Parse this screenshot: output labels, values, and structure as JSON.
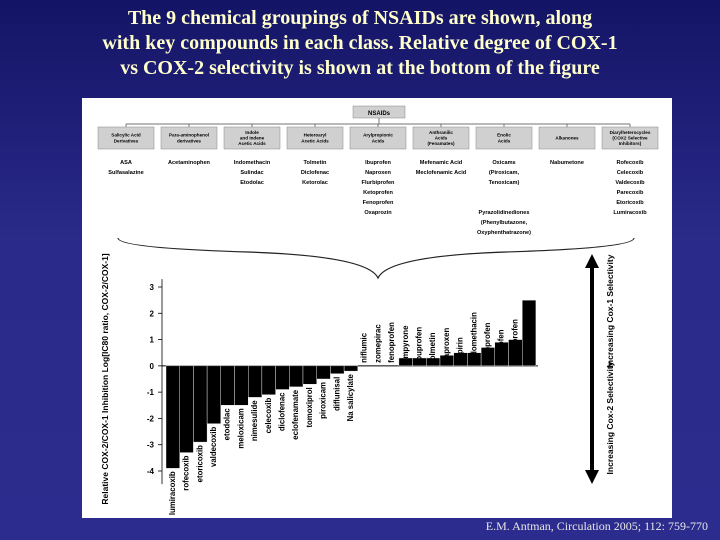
{
  "slide": {
    "title_lines": [
      "The 9 chemical groupings of NSAIDs are shown, along",
      "with key compounds in each class. Relative degree of COX-1",
      "vs COX-2 selectivity is shown at the bottom of the figure"
    ],
    "citation": "E.M. Antman, Circulation 2005; 112: 759-770"
  },
  "colors": {
    "box": "#d0d0d0",
    "bar": "#000000",
    "background": "#1c1c6e",
    "title": "#ffffcc"
  },
  "tree": {
    "root": "NSAIDs",
    "classes": [
      {
        "name": [
          "Salicylic Acid",
          "Derivatives"
        ],
        "compounds": [
          "ASA",
          "Sulfasalazine"
        ]
      },
      {
        "name": [
          "Para-aminophenol",
          "derivatives"
        ],
        "compounds": [
          "Acetaminophen"
        ]
      },
      {
        "name": [
          "Indole",
          "and Indene",
          "Acetic Acids"
        ],
        "compounds": [
          "Indomethacin",
          "Sulindac",
          "Etodolac"
        ]
      },
      {
        "name": [
          "Heteroaryl",
          "Acetic Acids"
        ],
        "compounds": [
          "Tolmetin",
          "Diclofenac",
          "Ketorolac"
        ]
      },
      {
        "name": [
          "Arylpropionic",
          "Acids"
        ],
        "compounds": [
          "Ibuprofen",
          "Naproxen",
          "Flurbiprofen",
          "Ketoprofen",
          "Fenoprofen",
          "Oxaprozin"
        ]
      },
      {
        "name": [
          "Anthranilic",
          "Acids",
          "(Fenamates)"
        ],
        "compounds": [
          "Mefenamic Acid",
          "Meclofenamic Acid"
        ]
      },
      {
        "name": [
          "Enolic",
          "Acids"
        ],
        "compounds": [
          "Oxicams",
          "(Piroxicam,",
          "Tenoxicam)",
          "",
          "",
          "Pyrazolidinediones",
          "(Phenylbutazone,",
          "Oxyphenthatrazone)"
        ]
      },
      {
        "name": [
          "Alkanones"
        ],
        "compounds": [
          "Nabumetone"
        ]
      },
      {
        "name": [
          "Diarylheterocycles",
          "(COX2 Selective",
          "Inhibitors)"
        ],
        "compounds": [
          "Rofecoxib",
          "Celecoxib",
          "Valdecoxib",
          "Parecoxib",
          "Etoricoxib",
          "Lumiracoxib"
        ]
      }
    ]
  },
  "chart_data": {
    "type": "bar",
    "ylabel": "Relative COX-2/COX-1 Inhibition Log[IC80 ratio, COX-2/COX-1]",
    "ylim": [
      -4.5,
      3.5
    ],
    "yticks": [
      "3",
      "2",
      "1",
      "0",
      "-1",
      "-2",
      "-3",
      "-4"
    ],
    "categories": [
      "lumiracoxib",
      "rofecoxib",
      "etoricoxib",
      "valdecoxib",
      "etodolac",
      "meloxicam",
      "nimesulide",
      "celecoxib",
      "diclofenac",
      "eclofenamate",
      "tomoxiprol",
      "piroxicam",
      "diflunisal",
      "Na salicylate",
      "niflumic",
      "zomepirac",
      "fenoprofen",
      "ampyrone",
      "ibuprofen",
      "tolmetin",
      "naproxen",
      "aspirin",
      "indomethacin",
      "ketoprofen",
      "suprofen",
      "flurbiprofen",
      "ketorolac"
    ],
    "values": [
      -3.9,
      -3.3,
      -2.9,
      -2.2,
      -1.5,
      -1.5,
      -1.2,
      -1.1,
      -0.9,
      -0.8,
      -0.7,
      -0.5,
      -0.3,
      -0.2,
      0,
      0,
      0,
      0.3,
      0.3,
      0.3,
      0.4,
      0.5,
      0.5,
      0.7,
      0.9,
      1.0,
      2.5
    ],
    "arrow_labels": {
      "up": "Increasing Cox-1 Selectivity",
      "down": "Increasing Cox-2 Selectivity"
    }
  }
}
